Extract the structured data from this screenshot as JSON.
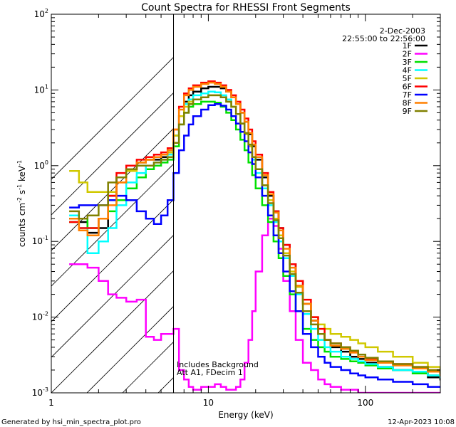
{
  "chart_data": {
    "type": "line",
    "title": "Count Spectra for RHESSI Front Segments",
    "xlabel": "Energy (keV)",
    "ylabel_base": "counts cm",
    "ylabel_parts": [
      {
        "text": "counts cm",
        "sup": false
      },
      {
        "text": "-2",
        "sup": true
      },
      {
        "text": " s",
        "sup": false
      },
      {
        "text": "-1",
        "sup": true
      },
      {
        "text": " keV",
        "sup": false
      },
      {
        "text": "-1",
        "sup": true
      }
    ],
    "x_scale": "log",
    "y_scale": "log",
    "xlim": [
      1,
      300
    ],
    "ylim": [
      0.001,
      100
    ],
    "x_ticks": [
      {
        "value": 1,
        "label": "1"
      },
      {
        "value": 10,
        "label": "10"
      },
      {
        "value": 100,
        "label": "100"
      }
    ],
    "y_ticks": [
      {
        "value": 0.001,
        "base": "10",
        "exp": "-3"
      },
      {
        "value": 0.01,
        "base": "10",
        "exp": "-2"
      },
      {
        "value": 0.1,
        "base": "10",
        "exp": "-1"
      },
      {
        "value": 1,
        "base": "10",
        "exp": "0"
      },
      {
        "value": 10,
        "base": "10",
        "exp": "1"
      },
      {
        "value": 100,
        "base": "10",
        "exp": "2"
      }
    ],
    "hatch_region_max_keV": 6,
    "date": "2-Dec-2003",
    "time_range": "22:55:00 to 22:56:00",
    "annotations": [
      "Includes Background",
      "Att A1, FDecim 1"
    ],
    "energy_bins_keV": [
      1.3,
      1.5,
      1.7,
      2.0,
      2.3,
      2.6,
      3.0,
      3.5,
      4.0,
      4.5,
      5.0,
      5.5,
      6.0,
      6.5,
      7.0,
      7.5,
      8,
      9,
      10,
      11,
      12,
      13,
      14,
      15,
      16,
      17,
      18,
      19,
      20,
      22,
      24,
      26,
      28,
      30,
      33,
      36,
      40,
      45,
      50,
      55,
      60,
      70,
      80,
      90,
      100,
      120,
      150,
      200,
      250,
      300
    ],
    "series": [
      {
        "name": "1F",
        "color": "#000000",
        "values": [
          0.2,
          0.18,
          0.13,
          0.15,
          0.4,
          0.7,
          0.9,
          1.1,
          1.2,
          1.2,
          1.3,
          1.5,
          2.5,
          4.5,
          7.0,
          8.5,
          9.5,
          10.5,
          11.0,
          11.0,
          10.5,
          9.5,
          8.0,
          6.5,
          5.0,
          3.8,
          2.6,
          1.8,
          1.2,
          0.7,
          0.4,
          0.25,
          0.15,
          0.09,
          0.05,
          0.03,
          0.015,
          0.009,
          0.006,
          0.005,
          0.004,
          0.0035,
          0.003,
          0.0028,
          0.0025,
          0.0022,
          0.002,
          0.0018,
          0.0016,
          0.0015
        ]
      },
      {
        "name": "2F",
        "color": "#ff00ff",
        "values": [
          0.05,
          0.05,
          0.045,
          0.03,
          0.02,
          0.018,
          0.016,
          0.017,
          0.0055,
          0.005,
          0.006,
          0.006,
          0.007,
          0.002,
          0.0015,
          0.0012,
          0.0011,
          0.0012,
          0.0012,
          0.0013,
          0.0012,
          0.0011,
          0.0011,
          0.0012,
          0.0015,
          0.0025,
          0.005,
          0.012,
          0.04,
          0.12,
          0.2,
          0.16,
          0.08,
          0.03,
          0.012,
          0.005,
          0.0025,
          0.002,
          0.0015,
          0.0013,
          0.0012,
          0.0011,
          0.0011,
          0.001,
          0.001,
          0.001,
          0.001,
          0.001,
          0.001,
          0.001
        ]
      },
      {
        "name": "3F",
        "color": "#00e000",
        "values": [
          0.18,
          0.2,
          0.15,
          0.2,
          0.25,
          0.35,
          0.5,
          0.7,
          0.9,
          1.0,
          1.1,
          1.2,
          1.8,
          3.5,
          5.0,
          6.0,
          6.5,
          7.0,
          7.0,
          6.8,
          6.0,
          5.0,
          4.0,
          3.0,
          2.2,
          1.6,
          1.1,
          0.75,
          0.5,
          0.3,
          0.18,
          0.1,
          0.06,
          0.035,
          0.02,
          0.012,
          0.007,
          0.005,
          0.004,
          0.0035,
          0.003,
          0.0028,
          0.0026,
          0.0025,
          0.0023,
          0.0021,
          0.002,
          0.0018,
          0.0017,
          0.0016
        ]
      },
      {
        "name": "4F",
        "color": "#00ffff",
        "values": [
          0.22,
          0.15,
          0.07,
          0.1,
          0.15,
          0.3,
          0.6,
          0.8,
          1.0,
          1.1,
          1.2,
          1.4,
          2.5,
          4.5,
          6.5,
          7.5,
          8.5,
          9.0,
          9.5,
          9.3,
          8.5,
          7.5,
          6.0,
          4.8,
          3.6,
          2.6,
          1.8,
          1.2,
          0.8,
          0.5,
          0.3,
          0.18,
          0.1,
          0.06,
          0.035,
          0.02,
          0.011,
          0.007,
          0.005,
          0.004,
          0.0035,
          0.003,
          0.0028,
          0.0026,
          0.0024,
          0.0022,
          0.002,
          0.0019,
          0.0017,
          0.0016
        ]
      },
      {
        "name": "5F",
        "color": "#d0c800",
        "values": [
          0.85,
          0.6,
          0.45,
          0.45,
          0.45,
          0.6,
          0.85,
          1.1,
          1.2,
          1.3,
          1.4,
          1.5,
          2.5,
          4.5,
          6.0,
          7.0,
          7.5,
          8.0,
          8.5,
          8.5,
          8.0,
          7.0,
          6.0,
          4.8,
          3.6,
          2.6,
          1.8,
          1.3,
          0.9,
          0.55,
          0.35,
          0.2,
          0.12,
          0.07,
          0.04,
          0.025,
          0.015,
          0.01,
          0.008,
          0.007,
          0.006,
          0.0055,
          0.005,
          0.0045,
          0.004,
          0.0035,
          0.003,
          0.0025,
          0.0022,
          0.002
        ]
      },
      {
        "name": "6F",
        "color": "#ff0000",
        "values": [
          0.18,
          0.15,
          0.15,
          0.2,
          0.4,
          0.8,
          1.0,
          1.2,
          1.3,
          1.4,
          1.5,
          1.7,
          3.0,
          6.0,
          9.0,
          10.5,
          11.5,
          12.5,
          13.0,
          12.5,
          11.5,
          10.0,
          8.5,
          7.0,
          5.5,
          4.2,
          3.0,
          2.1,
          1.4,
          0.8,
          0.45,
          0.25,
          0.15,
          0.09,
          0.05,
          0.03,
          0.017,
          0.01,
          0.007,
          0.005,
          0.0045,
          0.004,
          0.0035,
          0.003,
          0.0028,
          0.0026,
          0.0024,
          0.0022,
          0.002,
          0.0018
        ]
      },
      {
        "name": "7F",
        "color": "#0000ff",
        "values": [
          0.28,
          0.3,
          0.3,
          0.3,
          0.35,
          0.4,
          0.35,
          0.25,
          0.2,
          0.17,
          0.22,
          0.35,
          0.8,
          1.6,
          2.5,
          3.5,
          4.5,
          5.5,
          6.3,
          6.5,
          6.2,
          5.5,
          4.5,
          3.6,
          2.8,
          2.1,
          1.5,
          1.05,
          0.7,
          0.4,
          0.22,
          0.12,
          0.07,
          0.04,
          0.022,
          0.012,
          0.006,
          0.004,
          0.003,
          0.0025,
          0.0022,
          0.002,
          0.0018,
          0.0017,
          0.0016,
          0.0015,
          0.0014,
          0.0013,
          0.0012,
          0.0012
        ]
      },
      {
        "name": "8F",
        "color": "#ff8000",
        "values": [
          0.2,
          0.14,
          0.12,
          0.2,
          0.3,
          0.6,
          0.9,
          1.1,
          1.2,
          1.3,
          1.4,
          1.6,
          3.0,
          5.5,
          8.5,
          10.0,
          11.0,
          12.0,
          12.5,
          12.0,
          11.0,
          9.5,
          8.0,
          6.5,
          5.0,
          3.8,
          2.7,
          1.9,
          1.3,
          0.75,
          0.42,
          0.24,
          0.14,
          0.08,
          0.045,
          0.026,
          0.015,
          0.009,
          0.006,
          0.005,
          0.0042,
          0.0038,
          0.0034,
          0.003,
          0.0027,
          0.0025,
          0.0023,
          0.0021,
          0.0019,
          0.0017
        ]
      },
      {
        "name": "9F",
        "color": "#808000",
        "values": [
          0.25,
          0.2,
          0.22,
          0.3,
          0.6,
          0.7,
          0.9,
          1.0,
          1.0,
          1.1,
          1.2,
          1.3,
          2.0,
          3.5,
          5.0,
          6.5,
          7.5,
          8.0,
          8.5,
          8.5,
          8.0,
          7.0,
          6.0,
          4.8,
          3.6,
          2.7,
          1.9,
          1.3,
          0.9,
          0.55,
          0.32,
          0.19,
          0.11,
          0.065,
          0.037,
          0.021,
          0.012,
          0.008,
          0.006,
          0.005,
          0.0045,
          0.004,
          0.0036,
          0.0032,
          0.0029,
          0.0026,
          0.0024,
          0.0022,
          0.002,
          0.0018
        ]
      }
    ]
  },
  "footer": {
    "generated_by": "Generated by hsi_min_spectra_plot.pro",
    "timestamp": "12-Apr-2023 10:08"
  }
}
